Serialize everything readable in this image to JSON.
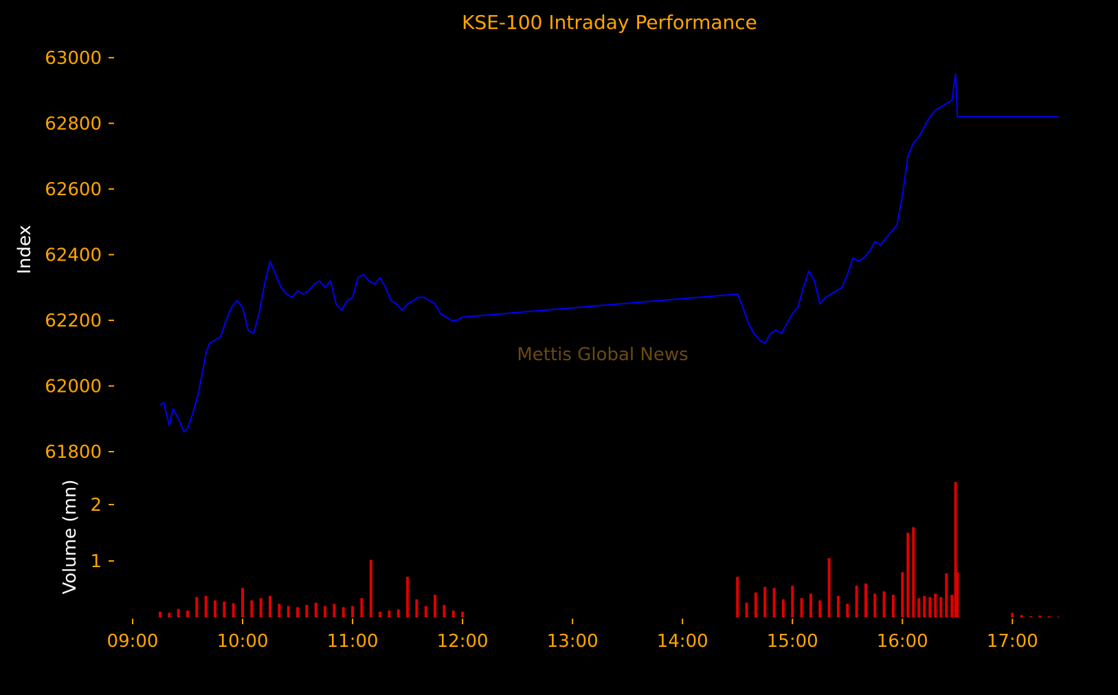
{
  "colors": {
    "background": "#000000",
    "text_accent": "#FFA500",
    "axis_label": "#FFFFFF",
    "index_line": "#0000FF",
    "volume_bars": "#E00000",
    "watermark": "#6B4A12"
  },
  "chart_data": [
    {
      "type": "line",
      "title": "KSE-100 Intraday Performance",
      "ylabel": "Index",
      "xlabel": "",
      "x_ticks": [
        "09:00",
        "10:00",
        "11:00",
        "12:00",
        "13:00",
        "14:00",
        "15:00",
        "16:00",
        "17:00"
      ],
      "y_ticks": [
        61800,
        62000,
        62200,
        62400,
        62600,
        62800,
        63000
      ],
      "xlim": [
        "09:00",
        "17:25"
      ],
      "ylim": [
        61800,
        63050
      ],
      "grid": false,
      "series": [
        {
          "x": [
            "09:15",
            "09:17",
            "09:20",
            "09:22",
            "09:25",
            "09:28",
            "09:30",
            "09:33",
            "09:36",
            "09:40",
            "09:42",
            "09:45",
            "09:48",
            "09:51",
            "09:54",
            "09:57",
            "10:00",
            "10:03",
            "10:06",
            "10:09",
            "10:12",
            "10:15",
            "10:18",
            "10:21",
            "10:24",
            "10:27",
            "10:30",
            "10:33",
            "10:36",
            "10:39",
            "10:42",
            "10:45",
            "10:48",
            "10:51",
            "10:54",
            "10:57",
            "11:00",
            "11:03",
            "11:06",
            "11:09",
            "11:12",
            "11:15",
            "11:18",
            "11:21",
            "11:24",
            "11:27",
            "11:30",
            "11:33",
            "11:36",
            "11:39",
            "11:42",
            "11:45",
            "11:48",
            "11:51",
            "11:54",
            "11:57",
            "12:00",
            "14:30",
            "14:33",
            "14:36",
            "14:39",
            "14:42",
            "14:45",
            "14:48",
            "14:51",
            "14:54",
            "14:57",
            "15:00",
            "15:03",
            "15:06",
            "15:09",
            "15:12",
            "15:15",
            "15:18",
            "15:21",
            "15:24",
            "15:27",
            "15:30",
            "15:33",
            "15:36",
            "15:39",
            "15:42",
            "15:45",
            "15:48",
            "15:51",
            "15:54",
            "15:57",
            "16:00",
            "16:03",
            "16:06",
            "16:09",
            "16:12",
            "16:15",
            "16:18",
            "16:21",
            "16:24",
            "16:27",
            "16:29",
            "16:30",
            "16:45",
            "17:00",
            "17:15",
            "17:25"
          ],
          "y": [
            61940,
            61950,
            61880,
            61930,
            61900,
            61860,
            61870,
            61920,
            61980,
            62100,
            62130,
            62140,
            62150,
            62200,
            62240,
            62260,
            62240,
            62170,
            62160,
            62220,
            62310,
            62380,
            62340,
            62300,
            62280,
            62270,
            62290,
            62280,
            62290,
            62310,
            62320,
            62300,
            62320,
            62250,
            62230,
            62260,
            62270,
            62330,
            62340,
            62320,
            62310,
            62330,
            62300,
            62260,
            62250,
            62230,
            62250,
            62260,
            62270,
            62270,
            62260,
            62250,
            62220,
            62210,
            62200,
            62200,
            62210,
            62280,
            62240,
            62190,
            62160,
            62140,
            62130,
            62160,
            62170,
            62160,
            62190,
            62220,
            62240,
            62300,
            62350,
            62320,
            62250,
            62270,
            62280,
            62290,
            62300,
            62340,
            62390,
            62380,
            62390,
            62410,
            62440,
            62430,
            62450,
            62470,
            62490,
            62580,
            62700,
            62740,
            62760,
            62790,
            62820,
            62840,
            62850,
            62860,
            62870,
            62950,
            62820,
            62820,
            62820,
            62820,
            62820
          ]
        }
      ],
      "annotations": [
        {
          "text": "Mettis Global News"
        }
      ]
    },
    {
      "type": "bar",
      "ylabel": "Volume (mn)",
      "xlabel": "",
      "y_ticks": [
        1,
        2
      ],
      "ylim": [
        0,
        2.5
      ],
      "grid": false,
      "series": [
        {
          "x": [
            "09:15",
            "09:20",
            "09:25",
            "09:30",
            "09:35",
            "09:40",
            "09:45",
            "09:50",
            "09:55",
            "10:00",
            "10:05",
            "10:10",
            "10:15",
            "10:20",
            "10:25",
            "10:30",
            "10:35",
            "10:40",
            "10:45",
            "10:50",
            "10:55",
            "11:00",
            "11:05",
            "11:10",
            "11:15",
            "11:20",
            "11:25",
            "11:30",
            "11:35",
            "11:40",
            "11:45",
            "11:50",
            "11:55",
            "12:00",
            "14:30",
            "14:35",
            "14:40",
            "14:45",
            "14:50",
            "14:55",
            "15:00",
            "15:05",
            "15:10",
            "15:15",
            "15:20",
            "15:25",
            "15:30",
            "15:35",
            "15:40",
            "15:45",
            "15:50",
            "15:55",
            "16:00",
            "16:03",
            "16:06",
            "16:09",
            "16:12",
            "16:15",
            "16:18",
            "16:21",
            "16:24",
            "16:27",
            "16:29",
            "16:30",
            "17:00",
            "17:05",
            "17:10",
            "17:15",
            "17:20",
            "17:25"
          ],
          "y": [
            0.1,
            0.08,
            0.15,
            0.12,
            0.36,
            0.38,
            0.3,
            0.28,
            0.25,
            0.52,
            0.3,
            0.34,
            0.38,
            0.24,
            0.2,
            0.18,
            0.22,
            0.26,
            0.2,
            0.24,
            0.18,
            0.2,
            0.34,
            1.02,
            0.1,
            0.12,
            0.14,
            0.72,
            0.32,
            0.2,
            0.4,
            0.22,
            0.12,
            0.1,
            0.72,
            0.26,
            0.44,
            0.54,
            0.52,
            0.32,
            0.56,
            0.34,
            0.42,
            0.3,
            1.05,
            0.38,
            0.24,
            0.56,
            0.6,
            0.42,
            0.46,
            0.4,
            0.8,
            1.5,
            1.6,
            0.34,
            0.38,
            0.36,
            0.42,
            0.36,
            0.78,
            0.4,
            2.4,
            0.8,
            0.08,
            0.04,
            0.02,
            0.03,
            0.02,
            0.01
          ]
        }
      ]
    }
  ]
}
